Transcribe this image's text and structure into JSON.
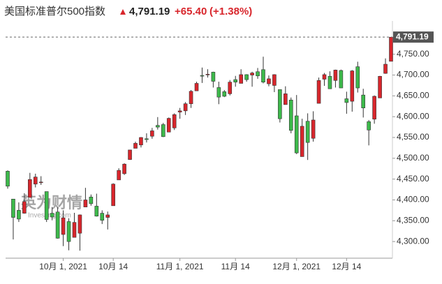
{
  "chart_data": {
    "type": "candlestick",
    "title": "美国标准普尔500指数",
    "change": "+65.40",
    "change_percent": "(+1.38%)",
    "last_price": {
      "value": 4791.19,
      "label": "4,791.19"
    },
    "watermark": "英为财情",
    "watermark_sub": "Investing.com",
    "up_color": "#d8262c",
    "down_color": "#3db94b",
    "categories": [
      null,
      null,
      null,
      null,
      null,
      null,
      null,
      null,
      null,
      null,
      "10月 1, 2021",
      null,
      null,
      null,
      null,
      null,
      null,
      null,
      null,
      "10月 14",
      null,
      null,
      null,
      null,
      null,
      null,
      null,
      null,
      null,
      null,
      null,
      "11月 1, 2021",
      null,
      null,
      null,
      null,
      null,
      null,
      null,
      null,
      null,
      "11月 14",
      null,
      null,
      null,
      null,
      null,
      null,
      null,
      null,
      null,
      null,
      "12月 1, 2021",
      null,
      null,
      null,
      null,
      null,
      null,
      null,
      null,
      "12月 14",
      null,
      null,
      null,
      null,
      null,
      null,
      null,
      null
    ],
    "open": [
      4469,
      4402,
      4375,
      4368,
      4406,
      4438,
      4443,
      4420,
      4368,
      4371,
      4317,
      4348,
      4310,
      4320,
      4383,
      4407,
      4385,
      4368,
      4358,
      4386,
      4448,
      4463,
      4497,
      4524,
      4532,
      4547,
      4553,
      4579,
      4581,
      4563,
      4573,
      4611,
      4614,
      4631,
      4662,
      4699,
      4702,
      4707,
      4670,
      4660,
      4655,
      4689,
      4680,
      4701,
      4700,
      4708,
      4713,
      4679,
      4675,
      4665,
      4629,
      4640,
      4602,
      4504,
      4589,
      4548,
      4632,
      4690,
      4697,
      4687,
      4711,
      4643,
      4637,
      4720,
      4652,
      4588,
      4594,
      4645,
      4704,
      4733
    ],
    "high": [
      4471,
      4402,
      4394,
      4416,
      4465,
      4463,
      4457,
      4420,
      4383,
      4382,
      4375,
      4356,
      4369,
      4365,
      4429,
      4413,
      4415,
      4375,
      4372,
      4440,
      4476,
      4488,
      4520,
      4540,
      4551,
      4560,
      4573,
      4599,
      4585,
      4598,
      4608,
      4621,
      4635,
      4664,
      4684,
      4718,
      4714,
      4708,
      4684,
      4664,
      4688,
      4698,
      4714,
      4702,
      4708,
      4717,
      4744,
      4699,
      4702,
      4665,
      4673,
      4646,
      4652,
      4595,
      4608,
      4613,
      4694,
      4705,
      4709,
      4713,
      4713,
      4660,
      4712,
      4732,
      4667,
      4592,
      4651,
      4698,
      4740,
      4791
    ],
    "low": [
      4427,
      4305,
      4347,
      4367,
      4406,
      4430,
      4436,
      4347,
      4351,
      4307,
      4289,
      4279,
      4310,
      4278,
      4383,
      4386,
      4360,
      4342,
      4329,
      4386,
      4448,
      4460,
      4496,
      4524,
      4526,
      4538,
      4547,
      4569,
      4551,
      4563,
      4568,
      4595,
      4604,
      4621,
      4662,
      4681,
      4694,
      4670,
      4630,
      4647,
      4651,
      4672,
      4680,
      4684,
      4672,
      4691,
      4680,
      4673,
      4659,
      4586,
      4629,
      4560,
      4510,
      4504,
      4496,
      4540,
      4632,
      4674,
      4667,
      4670,
      4669,
      4607,
      4612,
      4658,
      4598,
      4531,
      4583,
      4645,
      4703,
      4733
    ],
    "close": [
      4433,
      4358,
      4354,
      4396,
      4449,
      4455,
      4443,
      4353,
      4359,
      4308,
      4357,
      4300,
      4346,
      4364,
      4400,
      4391,
      4361,
      4351,
      4364,
      4438,
      4471,
      4486,
      4520,
      4536,
      4550,
      4545,
      4566,
      4575,
      4552,
      4596,
      4605,
      4614,
      4631,
      4661,
      4680,
      4698,
      4702,
      4685,
      4647,
      4649,
      4683,
      4683,
      4701,
      4689,
      4705,
      4698,
      4683,
      4691,
      4701,
      4595,
      4655,
      4567,
      4513,
      4577,
      4538,
      4592,
      4687,
      4701,
      4667,
      4712,
      4669,
      4634,
      4710,
      4669,
      4621,
      4568,
      4649,
      4697,
      4726,
      4791
    ],
    "ylim": [
      4260,
      4830
    ],
    "yticks": [
      {
        "value": 4300,
        "label": "4,300.00"
      },
      {
        "value": 4350,
        "label": "4,350.00"
      },
      {
        "value": 4400,
        "label": "4,400.00"
      },
      {
        "value": 4450,
        "label": "4,450.00"
      },
      {
        "value": 4500,
        "label": "4,500.00"
      },
      {
        "value": 4550,
        "label": "4,550.00"
      },
      {
        "value": 4600,
        "label": "4,600.00"
      },
      {
        "value": 4650,
        "label": "4,650.00"
      },
      {
        "value": 4700,
        "label": "4,700.00"
      },
      {
        "value": 4750,
        "label": "4,750.00"
      }
    ]
  }
}
